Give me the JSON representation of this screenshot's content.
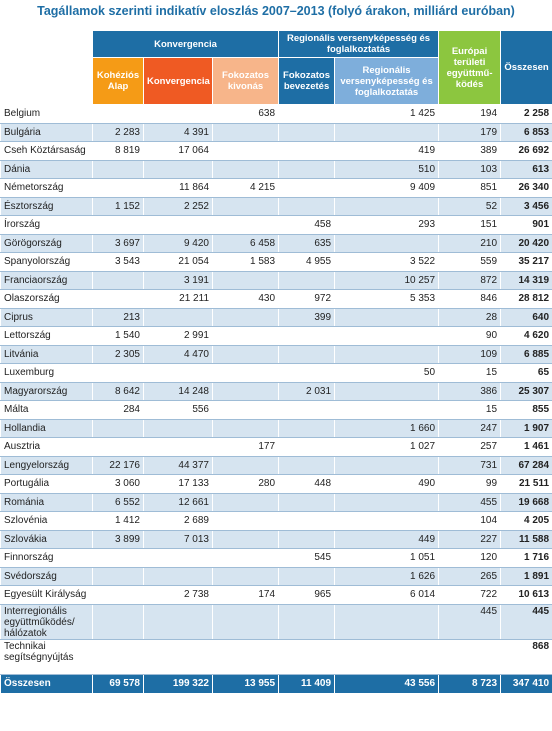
{
  "title": "Tagállamok szerinti indikatív eloszlás 2007–2013 (folyó árakon, milliárd euróban)",
  "headers": {
    "group_konvergencia": "Konvergencia",
    "group_regionalis": "Regionális versenyképesség és foglalkoztatás",
    "kohezios": "Kohéziós Alap",
    "konvergencia": "Konvergencia",
    "fokozatos_kivonas": "Fokozatos kivonás",
    "fokozatos_bevezetes": "Fokozatos bevezetés",
    "regionalis": "Regionális versenyképesség és foglalkoztatás",
    "europai": "Európai területi együttmű-ködés",
    "osszesen": "Összesen"
  },
  "rows": [
    {
      "name": "Belgium",
      "koh": "",
      "konv": "",
      "kiv": "638",
      "bev": "",
      "reg": "1 425",
      "eur": "194",
      "total": "2 258"
    },
    {
      "name": "Bulgária",
      "koh": "2 283",
      "konv": "4 391",
      "kiv": "",
      "bev": "",
      "reg": "",
      "eur": "179",
      "total": "6 853"
    },
    {
      "name": "Cseh Köztársaság",
      "koh": "8 819",
      "konv": "17 064",
      "kiv": "",
      "bev": "",
      "reg": "419",
      "eur": "389",
      "total": "26 692"
    },
    {
      "name": "Dánia",
      "koh": "",
      "konv": "",
      "kiv": "",
      "bev": "",
      "reg": "510",
      "eur": "103",
      "total": "613"
    },
    {
      "name": "Németország",
      "koh": "",
      "konv": "11 864",
      "kiv": "4 215",
      "bev": "",
      "reg": "9 409",
      "eur": "851",
      "total": "26 340"
    },
    {
      "name": "Észtország",
      "koh": "1 152",
      "konv": "2 252",
      "kiv": "",
      "bev": "",
      "reg": "",
      "eur": "52",
      "total": "3 456"
    },
    {
      "name": "Írország",
      "koh": "",
      "konv": "",
      "kiv": "",
      "bev": "458",
      "reg": "293",
      "eur": "151",
      "total": "901"
    },
    {
      "name": "Görögország",
      "koh": "3 697",
      "konv": "9 420",
      "kiv": "6 458",
      "bev": "635",
      "reg": "",
      "eur": "210",
      "total": "20 420"
    },
    {
      "name": "Spanyolország",
      "koh": "3 543",
      "konv": "21 054",
      "kiv": "1 583",
      "bev": "4 955",
      "reg": "3 522",
      "eur": "559",
      "total": "35 217"
    },
    {
      "name": "Franciaország",
      "koh": "",
      "konv": "3 191",
      "kiv": "",
      "bev": "",
      "reg": "10 257",
      "eur": "872",
      "total": "14 319"
    },
    {
      "name": "Olaszország",
      "koh": "",
      "konv": "21 211",
      "kiv": "430",
      "bev": "972",
      "reg": "5 353",
      "eur": "846",
      "total": "28 812"
    },
    {
      "name": "Ciprus",
      "koh": "213",
      "konv": "",
      "kiv": "",
      "bev": "399",
      "reg": "",
      "eur": "28",
      "total": "640"
    },
    {
      "name": "Lettország",
      "koh": "1 540",
      "konv": "2 991",
      "kiv": "",
      "bev": "",
      "reg": "",
      "eur": "90",
      "total": "4 620"
    },
    {
      "name": "Litvánia",
      "koh": "2 305",
      "konv": "4 470",
      "kiv": "",
      "bev": "",
      "reg": "",
      "eur": "109",
      "total": "6 885"
    },
    {
      "name": "Luxemburg",
      "koh": "",
      "konv": "",
      "kiv": "",
      "bev": "",
      "reg": "50",
      "eur": "15",
      "total": "65"
    },
    {
      "name": "Magyarország",
      "koh": "8 642",
      "konv": "14 248",
      "kiv": "",
      "bev": "2 031",
      "reg": "",
      "eur": "386",
      "total": "25 307"
    },
    {
      "name": "Málta",
      "koh": "284",
      "konv": "556",
      "kiv": "",
      "bev": "",
      "reg": "",
      "eur": "15",
      "total": "855"
    },
    {
      "name": "Hollandia",
      "koh": "",
      "konv": "",
      "kiv": "",
      "bev": "",
      "reg": "1 660",
      "eur": "247",
      "total": "1 907"
    },
    {
      "name": "Ausztria",
      "koh": "",
      "konv": "",
      "kiv": "177",
      "bev": "",
      "reg": "1 027",
      "eur": "257",
      "total": "1 461"
    },
    {
      "name": "Lengyelország",
      "koh": "22 176",
      "konv": "44 377",
      "kiv": "",
      "bev": "",
      "reg": "",
      "eur": "731",
      "total": "67 284"
    },
    {
      "name": "Portugália",
      "koh": "3 060",
      "konv": "17 133",
      "kiv": "280",
      "bev": "448",
      "reg": "490",
      "eur": "99",
      "total": "21 511"
    },
    {
      "name": "Románia",
      "koh": "6 552",
      "konv": "12 661",
      "kiv": "",
      "bev": "",
      "reg": "",
      "eur": "455",
      "total": "19 668"
    },
    {
      "name": "Szlovénia",
      "koh": "1 412",
      "konv": "2 689",
      "kiv": "",
      "bev": "",
      "reg": "",
      "eur": "104",
      "total": "4 205"
    },
    {
      "name": "Szlovákia",
      "koh": "3 899",
      "konv": "7 013",
      "kiv": "",
      "bev": "",
      "reg": "449",
      "eur": "227",
      "total": "11 588"
    },
    {
      "name": "Finnország",
      "koh": "",
      "konv": "",
      "kiv": "",
      "bev": "545",
      "reg": "1 051",
      "eur": "120",
      "total": "1 716"
    },
    {
      "name": "Svédország",
      "koh": "",
      "konv": "",
      "kiv": "",
      "bev": "",
      "reg": "1 626",
      "eur": "265",
      "total": "1 891"
    },
    {
      "name": "Egyesült Királyság",
      "koh": "",
      "konv": "2 738",
      "kiv": "174",
      "bev": "965",
      "reg": "6 014",
      "eur": "722",
      "total": "10 613"
    },
    {
      "name": "Interregionális együttműködés/ hálózatok",
      "koh": "",
      "konv": "",
      "kiv": "",
      "bev": "",
      "reg": "",
      "eur": "445",
      "total": "445"
    },
    {
      "name": "Technikai segítségnyújtás",
      "koh": "",
      "konv": "",
      "kiv": "",
      "bev": "",
      "reg": "",
      "eur": "",
      "total": "868"
    }
  ],
  "footer": {
    "name": "Összesen",
    "koh": "69 578",
    "konv": "199 322",
    "kiv": "13 955",
    "bev": "11 409",
    "reg": "43 556",
    "eur": "8 723",
    "total": "347 410"
  }
}
